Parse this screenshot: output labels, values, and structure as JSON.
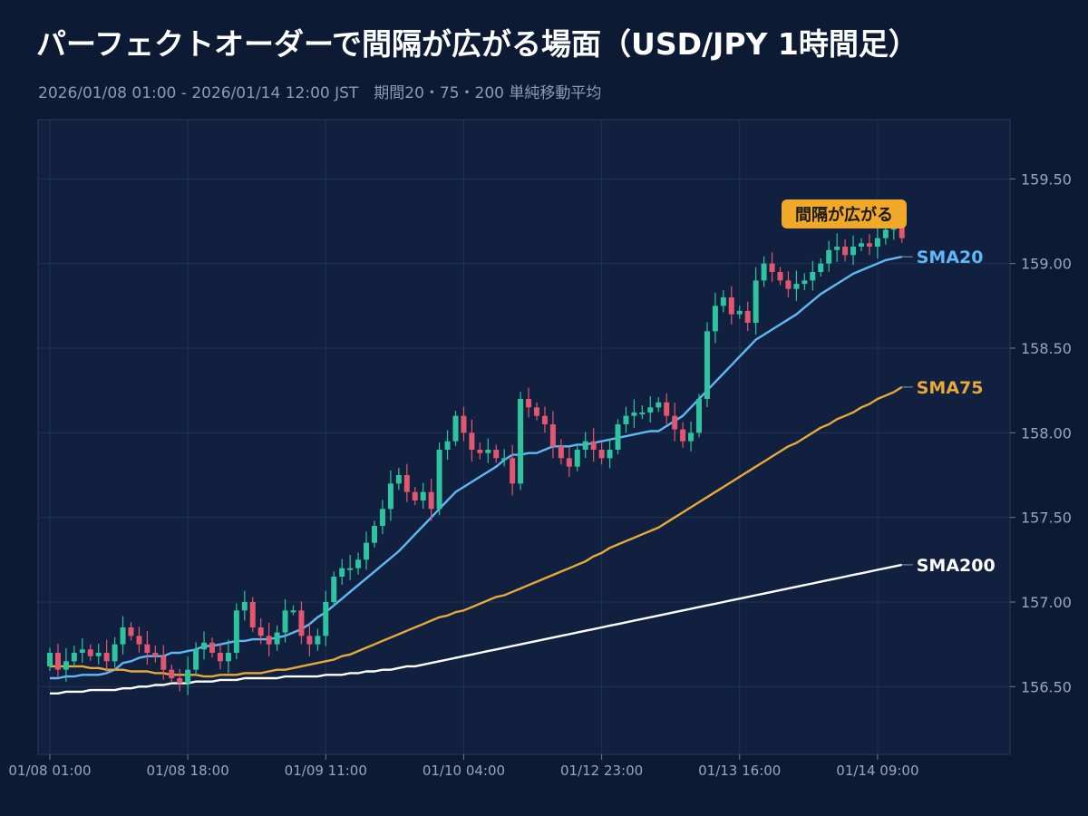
{
  "title": "パーフェクトオーダーで間隔が広がる場面（USD/JPY 1時間足）",
  "subtitle": "2026/01/08 01:00 - 2026/01/14 12:00 JST　期間20・75・200 単純移動平均",
  "chart_data": {
    "type": "candlestick",
    "ylim": [
      156.1,
      159.85
    ],
    "x_ticks": [
      "01/08 01:00",
      "01/08 18:00",
      "01/09 11:00",
      "01/10 04:00",
      "01/12 23:00",
      "01/13 16:00",
      "01/14 09:00"
    ],
    "x_tick_index": [
      0,
      17,
      34,
      51,
      68,
      85,
      102
    ],
    "y_ticks": [
      156.5,
      157.0,
      157.5,
      158.0,
      158.5,
      159.0,
      159.5
    ],
    "y_tick_labels": [
      "156.50",
      "157.00",
      "157.50",
      "158.00",
      "158.50",
      "159.00",
      "159.50"
    ],
    "grid": true,
    "annotation": "間隔が広がる",
    "colors": {
      "up": "#2ec4a0",
      "down": "#e3566f",
      "sma20": "#5fb8f5",
      "sma75": "#e6a93a",
      "sma200": "#ffffff",
      "annotation_bg": "#f0a928",
      "background": "#0d1a33",
      "plot_bg": "#11203f"
    },
    "close": [
      156.7,
      156.6,
      156.65,
      156.7,
      156.72,
      156.68,
      156.7,
      156.65,
      156.75,
      156.85,
      156.8,
      156.75,
      156.7,
      156.68,
      156.6,
      156.55,
      156.52,
      156.6,
      156.72,
      156.76,
      156.7,
      156.65,
      156.7,
      156.95,
      157.0,
      156.85,
      156.8,
      156.75,
      156.82,
      156.95,
      156.95,
      156.8,
      156.75,
      156.8,
      157.0,
      157.15,
      157.2,
      157.2,
      157.25,
      157.35,
      157.45,
      157.55,
      157.7,
      157.75,
      157.65,
      157.6,
      157.65,
      157.55,
      157.9,
      157.95,
      158.1,
      158.0,
      157.9,
      157.88,
      157.9,
      157.85,
      157.85,
      157.7,
      158.2,
      158.15,
      158.1,
      158.05,
      157.92,
      157.85,
      157.8,
      157.9,
      157.95,
      157.9,
      157.85,
      157.9,
      158.05,
      158.1,
      158.12,
      158.12,
      158.15,
      158.18,
      158.1,
      158.02,
      157.95,
      158.0,
      158.2,
      158.6,
      158.75,
      158.8,
      158.7,
      158.72,
      158.65,
      158.9,
      159.0,
      158.95,
      158.9,
      158.85,
      158.88,
      158.9,
      158.95,
      159.0,
      159.08,
      159.1,
      159.05,
      159.1,
      159.12,
      159.1,
      159.15,
      159.2,
      159.25,
      159.15
    ],
    "sma20": [
      156.55,
      156.55,
      156.56,
      156.56,
      156.57,
      156.57,
      156.57,
      156.58,
      156.6,
      156.64,
      156.65,
      156.67,
      156.68,
      156.68,
      156.68,
      156.7,
      156.7,
      156.71,
      156.72,
      156.74,
      156.74,
      156.75,
      156.76,
      156.77,
      156.77,
      156.78,
      156.78,
      156.78,
      156.79,
      156.8,
      156.82,
      156.84,
      156.87,
      156.91,
      156.94,
      156.98,
      157.02,
      157.06,
      157.1,
      157.14,
      157.18,
      157.22,
      157.26,
      157.3,
      157.35,
      157.4,
      157.45,
      157.5,
      157.55,
      157.6,
      157.65,
      157.68,
      157.71,
      157.74,
      157.77,
      157.8,
      157.84,
      157.87,
      157.87,
      157.88,
      157.88,
      157.9,
      157.92,
      157.92,
      157.92,
      157.93,
      157.93,
      157.94,
      157.95,
      157.96,
      157.97,
      157.98,
      157.99,
      158.0,
      158.01,
      158.01,
      158.04,
      158.07,
      158.1,
      158.15,
      158.2,
      158.25,
      158.3,
      158.35,
      158.4,
      158.45,
      158.5,
      158.55,
      158.58,
      158.61,
      158.64,
      158.67,
      158.7,
      158.74,
      158.78,
      158.82,
      158.85,
      158.88,
      158.91,
      158.94,
      158.96,
      158.98,
      159.0,
      159.02,
      159.03,
      159.04
    ],
    "sma75": [
      156.62,
      156.62,
      156.62,
      156.62,
      156.62,
      156.61,
      156.61,
      156.6,
      156.6,
      156.6,
      156.59,
      156.59,
      156.59,
      156.58,
      156.58,
      156.57,
      156.57,
      156.57,
      156.57,
      156.56,
      156.56,
      156.57,
      156.57,
      156.57,
      156.58,
      156.58,
      156.58,
      156.59,
      156.6,
      156.6,
      156.61,
      156.62,
      156.63,
      156.64,
      156.65,
      156.66,
      156.68,
      156.69,
      156.71,
      156.73,
      156.75,
      156.77,
      156.79,
      156.81,
      156.83,
      156.85,
      156.87,
      156.89,
      156.91,
      156.92,
      156.94,
      156.95,
      156.97,
      156.99,
      157.01,
      157.03,
      157.04,
      157.06,
      157.08,
      157.1,
      157.12,
      157.14,
      157.16,
      157.18,
      157.2,
      157.22,
      157.24,
      157.27,
      157.29,
      157.32,
      157.34,
      157.36,
      157.38,
      157.4,
      157.42,
      157.44,
      157.47,
      157.5,
      157.53,
      157.56,
      157.59,
      157.62,
      157.65,
      157.68,
      157.71,
      157.74,
      157.77,
      157.8,
      157.83,
      157.86,
      157.89,
      157.92,
      157.94,
      157.97,
      158.0,
      158.03,
      158.05,
      158.08,
      158.1,
      158.12,
      158.15,
      158.17,
      158.2,
      158.22,
      158.24,
      158.27
    ],
    "sma200": [
      156.46,
      156.46,
      156.47,
      156.47,
      156.47,
      156.48,
      156.48,
      156.48,
      156.48,
      156.49,
      156.49,
      156.5,
      156.5,
      156.51,
      156.51,
      156.52,
      156.52,
      156.52,
      156.53,
      156.53,
      156.53,
      156.54,
      156.54,
      156.54,
      156.55,
      156.55,
      156.55,
      156.55,
      156.55,
      156.56,
      156.56,
      156.56,
      156.56,
      156.56,
      156.57,
      156.57,
      156.57,
      156.58,
      156.58,
      156.59,
      156.59,
      156.6,
      156.6,
      156.61,
      156.62,
      156.62,
      156.63,
      156.64,
      156.65,
      156.66,
      156.67,
      156.68,
      156.69,
      156.7,
      156.71,
      156.72,
      156.73,
      156.74,
      156.75,
      156.76,
      156.77,
      156.78,
      156.79,
      156.8,
      156.81,
      156.82,
      156.83,
      156.84,
      156.85,
      156.86,
      156.87,
      156.88,
      156.89,
      156.9,
      156.91,
      156.92,
      156.93,
      156.94,
      156.95,
      156.96,
      156.97,
      156.98,
      156.99,
      157.0,
      157.01,
      157.02,
      157.03,
      157.04,
      157.05,
      157.06,
      157.07,
      157.08,
      157.09,
      157.1,
      157.11,
      157.12,
      157.13,
      157.14,
      157.15,
      157.16,
      157.17,
      157.18,
      157.19,
      157.2,
      157.21,
      157.22
    ],
    "series": [
      {
        "name": "SMA20",
        "key": "sma20"
      },
      {
        "name": "SMA75",
        "key": "sma75"
      },
      {
        "name": "SMA200",
        "key": "sma200"
      }
    ]
  }
}
